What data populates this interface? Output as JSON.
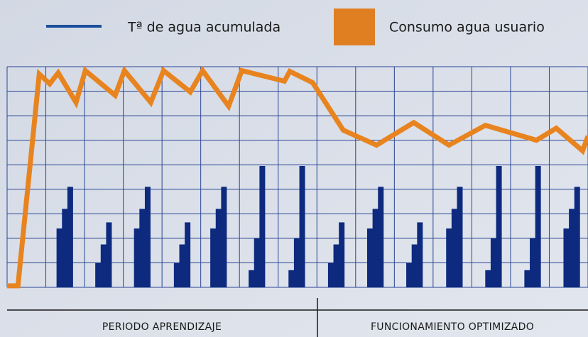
{
  "chart_data": {
    "type": "line",
    "xlim": [
      0,
      15
    ],
    "ylim": [
      0,
      9
    ],
    "xticks": [
      0,
      1,
      2,
      3,
      4,
      5,
      6,
      7,
      8,
      9,
      10,
      11,
      12,
      13,
      14,
      15
    ],
    "yticks": [
      0,
      1,
      2,
      3,
      4,
      5,
      6,
      7,
      8,
      9
    ],
    "grid": true,
    "grid_color": "#2a4595",
    "series": [
      {
        "name": "Tª de agua acumulada",
        "color": "#e8841f",
        "legend_color": "#1b4f9c",
        "x": [
          0,
          0.28,
          0.83,
          1.1,
          1.32,
          1.78,
          2.02,
          2.79,
          3.03,
          3.71,
          4.04,
          4.73,
          5.05,
          5.72,
          6.06,
          7.16,
          7.3,
          7.89,
          8.68,
          9.54,
          10.5,
          11.41,
          12.35,
          13.67,
          14.18,
          14.86,
          15
        ],
        "values": [
          0.06,
          0.06,
          8.7,
          8.3,
          8.75,
          7.54,
          8.84,
          7.83,
          8.84,
          7.54,
          8.84,
          7.97,
          8.84,
          7.39,
          8.84,
          8.41,
          8.81,
          8.35,
          6.41,
          5.8,
          6.72,
          5.8,
          6.61,
          6.0,
          6.49,
          5.57,
          6.17
        ]
      },
      {
        "name": "Consumo agua usuario",
        "color": "#0d2a7f",
        "legend_color": "#e07f22",
        "x": [
          1.35,
          1.49,
          1.63,
          2.35,
          2.49,
          2.63,
          3.35,
          3.49,
          3.63,
          4.38,
          4.52,
          4.66,
          5.32,
          5.46,
          5.6,
          6.31,
          6.45,
          6.59,
          7.34,
          7.48,
          7.62,
          8.36,
          8.5,
          8.64,
          9.37,
          9.51,
          9.65,
          10.38,
          10.52,
          10.66,
          11.41,
          11.55,
          11.69,
          12.42,
          12.56,
          12.7,
          13.43,
          13.57,
          13.71,
          14.44,
          14.58,
          14.72
        ],
        "values": [
          2.4,
          3.2,
          4.1,
          1,
          1.75,
          2.65,
          2.4,
          3.2,
          4.1,
          1,
          1.75,
          2.65,
          2.4,
          3.2,
          4.1,
          0.7,
          2,
          4.95,
          0.7,
          2,
          4.95,
          1,
          1.75,
          2.65,
          2.4,
          3.2,
          4.1,
          1,
          1.75,
          2.65,
          2.4,
          3.2,
          4.1,
          0.7,
          2,
          4.95,
          0.7,
          2,
          4.95,
          2.4,
          3.2,
          4.1
        ]
      }
    ],
    "sections": [
      "PERIODO APRENDIZAJE",
      "FUNCIONAMIENTO OPTIMIZADO"
    ]
  }
}
